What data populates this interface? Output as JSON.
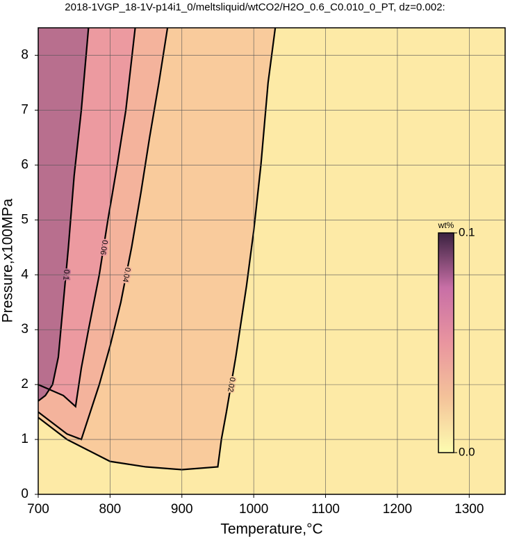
{
  "chart_data": {
    "type": "contour",
    "title": "2018-1VGP_18-1V-p14i1_0/meltsliquid/wtCO2/H2O_0.6_C0.010_0_PT, dz=0.002:",
    "x_label": "Temperature,°C",
    "y_label": "Pressure,x100MPa",
    "xlim": [
      700,
      1350
    ],
    "ylim": [
      0,
      8.5
    ],
    "xticks": [
      700,
      800,
      900,
      1000,
      1100,
      1200,
      1300
    ],
    "yticks": [
      0,
      1,
      2,
      3,
      4,
      5,
      6,
      7,
      8
    ],
    "grid": true,
    "background": "#fdeaa6",
    "series": [
      {
        "name": "0.02",
        "color": "#f9cb9c",
        "x": [
          1030,
          1020,
          1010,
          1000,
          990,
          975,
          962,
          955,
          950,
          900,
          850,
          800,
          770,
          740,
          700
        ],
        "y": [
          8.5,
          7.5,
          6.0,
          4.8,
          3.8,
          2.5,
          1.5,
          1.0,
          0.5,
          0.45,
          0.5,
          0.6,
          0.8,
          1.0,
          1.4
        ]
      },
      {
        "name": "0.04",
        "color": "#f4b39c",
        "x": [
          880,
          868,
          855,
          843,
          830,
          815,
          800,
          785,
          770,
          760,
          740,
          720,
          700
        ],
        "y": [
          8.5,
          7.5,
          6.5,
          5.5,
          4.5,
          3.5,
          2.7,
          2.0,
          1.4,
          1.0,
          1.1,
          1.3,
          1.5
        ]
      },
      {
        "name": "0.06",
        "color": "#ec9aa0",
        "x": [
          835,
          822,
          810,
          797,
          785,
          770,
          760,
          752,
          735,
          700
        ],
        "y": [
          8.5,
          7.0,
          6.0,
          5.0,
          4.0,
          3.0,
          2.3,
          1.6,
          1.8,
          2.0
        ]
      },
      {
        "name": "0.1",
        "color": "#b86f8e",
        "x": [
          770,
          760,
          750,
          742,
          735,
          728,
          720,
          710,
          700
        ],
        "y": [
          8.5,
          7.0,
          5.8,
          4.5,
          3.5,
          2.5,
          2.0,
          1.8,
          1.7
        ]
      }
    ],
    "colorbar": {
      "label": "wt%",
      "lim": [
        0,
        0.1
      ],
      "ticks": [
        {
          "value": 0,
          "label": "0.0"
        },
        {
          "value": 0.1,
          "label": "0.1"
        }
      ],
      "colors": [
        "#fdfcb0",
        "#f4c39a",
        "#e9959f",
        "#c86fa6",
        "#3a2240"
      ]
    }
  }
}
